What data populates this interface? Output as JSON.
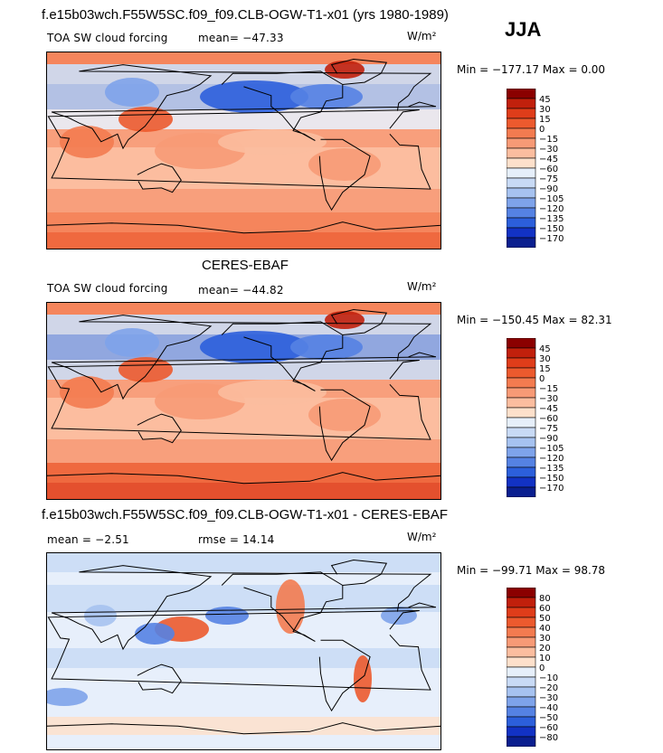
{
  "header": {
    "model_title": "f.e15b03wch.F55W5SC.f09_f09.CLB-OGW-T1-x01 (yrs 1980-1989)",
    "season": "JJA"
  },
  "panels": [
    {
      "title": "",
      "left_label": "TOA SW cloud forcing",
      "mean_label": "mean= −47.33",
      "units": "W/m²",
      "minmax": "Min = −177.17 Max =   0.00",
      "palette": "abs"
    },
    {
      "title": "CERES-EBAF",
      "left_label": "TOA SW cloud forcing",
      "mean_label": "mean= −44.82",
      "units": "W/m²",
      "minmax": "Min = −150.45 Max =  82.31",
      "palette": "abs"
    },
    {
      "title": "f.e15b03wch.F55W5SC.f09_f09.CLB-OGW-T1-x01 - CERES-EBAF",
      "left_label": "mean =   −2.51",
      "mean_label": "rmse =  14.14",
      "units": "W/m²",
      "minmax": "Min = −99.71 Max =  98.78",
      "palette": "diff"
    }
  ],
  "colorbars": {
    "abs": {
      "labels": [
        "45",
        "30",
        "15",
        "0",
        "−15",
        "−30",
        "−45",
        "−60",
        "−75",
        "−90",
        "−105",
        "−120",
        "−135",
        "−150",
        "−170"
      ],
      "colors": [
        "#8b0000",
        "#c1200c",
        "#df3d1a",
        "#ec5a2e",
        "#f37b50",
        "#f79a76",
        "#fbbd9f",
        "#fde0cb",
        "#e6effa",
        "#c8daf5",
        "#a6c2f0",
        "#7ea3ea",
        "#5582e3",
        "#2c5fdb",
        "#1232c4",
        "#0a1f8f"
      ]
    },
    "diff": {
      "labels": [
        "80",
        "60",
        "50",
        "40",
        "30",
        "20",
        "10",
        "0",
        "−10",
        "−20",
        "−30",
        "−40",
        "−50",
        "−60",
        "−80"
      ],
      "colors": [
        "#8b0000",
        "#c1200c",
        "#df3d1a",
        "#ec5a2e",
        "#f37b50",
        "#f79a76",
        "#fbbd9f",
        "#fde0cb",
        "#e6effa",
        "#c8daf5",
        "#a6c2f0",
        "#7ea3ea",
        "#5582e3",
        "#2c5fdb",
        "#1232c4",
        "#0a1f8f"
      ]
    }
  },
  "chart_data": [
    {
      "type": "heatmap",
      "title": "TOA SW cloud forcing",
      "mean": -47.33,
      "min": -177.17,
      "max": 0.0,
      "units": "W/m²",
      "contour_levels": [
        -170,
        -150,
        -135,
        -120,
        -105,
        -90,
        -75,
        -60,
        -45,
        -30,
        -15,
        0,
        15,
        30,
        45
      ]
    },
    {
      "type": "heatmap",
      "title": "CERES-EBAF TOA SW cloud forcing",
      "mean": -44.82,
      "min": -150.45,
      "max": 82.31,
      "units": "W/m²",
      "contour_levels": [
        -170,
        -150,
        -135,
        -120,
        -105,
        -90,
        -75,
        -60,
        -45,
        -30,
        -15,
        0,
        15,
        30,
        45
      ]
    },
    {
      "type": "heatmap",
      "title": "f.e15b03wch.F55W5SC.f09_f09.CLB-OGW-T1-x01 - CERES-EBAF",
      "mean": -2.51,
      "rmse": 14.14,
      "min": -99.71,
      "max": 98.78,
      "units": "W/m²",
      "contour_levels": [
        -80,
        -60,
        -50,
        -40,
        -30,
        -20,
        -10,
        0,
        10,
        20,
        30,
        40,
        50,
        60,
        80
      ]
    }
  ]
}
